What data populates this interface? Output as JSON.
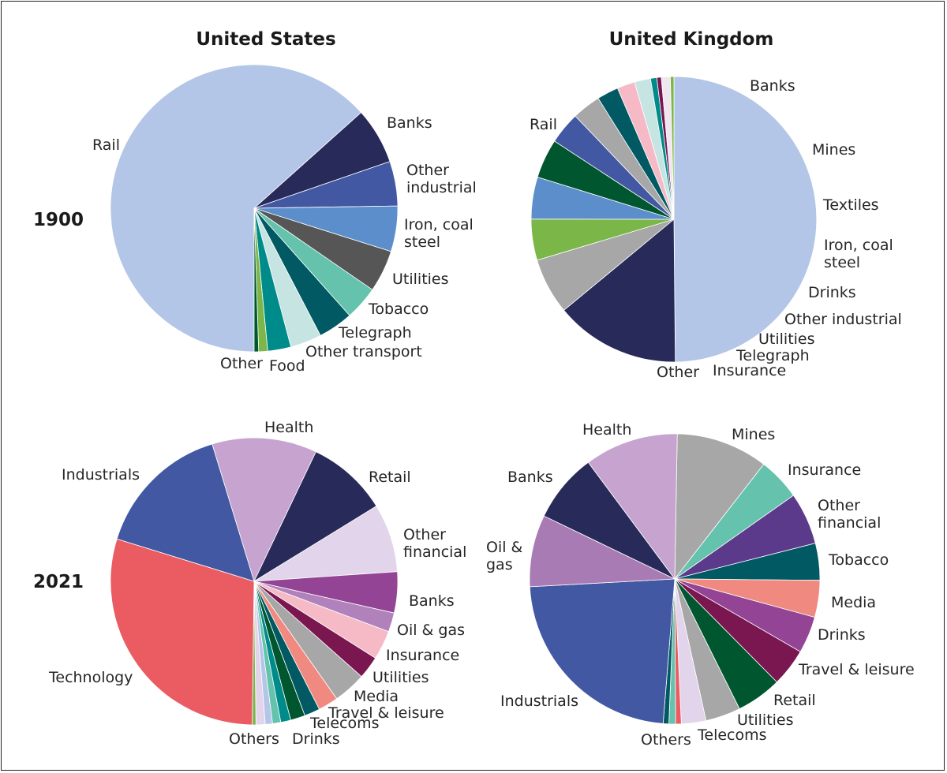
{
  "figure": {
    "column_titles": [
      "United States",
      "United Kingdom"
    ],
    "row_labels": [
      "1900",
      "2021"
    ]
  },
  "chart_data": [
    {
      "type": "pie",
      "country": "United States",
      "year": "1900",
      "slices": [
        {
          "label": "Rail",
          "value": 63.0,
          "color": "#b3c6e7"
        },
        {
          "label": "Banks",
          "value": 6.3,
          "color": "#282a59"
        },
        {
          "label": "Other industrial",
          "value": 5.0,
          "color": "#4358a3"
        },
        {
          "label": "Iron, coal steel",
          "value": 5.1,
          "color": "#5b8ecb"
        },
        {
          "label": "Utilities",
          "value": 4.7,
          "color": "#565656"
        },
        {
          "label": "Tobacco",
          "value": 3.8,
          "color": "#64c2ad"
        },
        {
          "label": "Telegraph",
          "value": 3.9,
          "color": "#005963"
        },
        {
          "label": "Other transport",
          "value": 3.5,
          "color": "#c6e5e2"
        },
        {
          "label": "Food",
          "value": 2.6,
          "color": "#008b8b"
        },
        {
          "label": "Other",
          "value": 1.0,
          "color": "#7ab648"
        },
        {
          "label": "",
          "value": 0.5,
          "color": "#00562e"
        }
      ]
    },
    {
      "type": "pie",
      "country": "United Kingdom",
      "year": "1900",
      "slices": [
        {
          "label": "Rail",
          "value": 49.3,
          "color": "#b3c6e7"
        },
        {
          "label": "Banks",
          "value": 14.0,
          "color": "#282a59"
        },
        {
          "label": "Mines",
          "value": 6.3,
          "color": "#a7a7a7"
        },
        {
          "label": "Textiles",
          "value": 4.6,
          "color": "#7ab648"
        },
        {
          "label": "Iron, coal steel",
          "value": 4.7,
          "color": "#5b8ecb"
        },
        {
          "label": "Drinks",
          "value": 4.4,
          "color": "#00562e"
        },
        {
          "label": "Other industrial",
          "value": 3.6,
          "color": "#4358a3"
        },
        {
          "label": "Utilities",
          "value": 3.2,
          "color": "#a7a7a7"
        },
        {
          "label": "Telegraph",
          "value": 2.4,
          "color": "#005963"
        },
        {
          "label": "Insurance",
          "value": 2.0,
          "color": "#f5bac6"
        },
        {
          "label": "",
          "value": 1.8,
          "color": "#c6e5e2"
        },
        {
          "label": "",
          "value": 0.7,
          "color": "#008b8b"
        },
        {
          "label": "",
          "value": 0.5,
          "color": "#7a1650"
        },
        {
          "label": "Other",
          "value": 1.0,
          "color": "#efe6ef"
        },
        {
          "label": "",
          "value": 0.4,
          "color": "#7ab648"
        }
      ]
    },
    {
      "type": "pie",
      "country": "United States",
      "year": "2021",
      "slices": [
        {
          "label": "Health",
          "value": 11.5,
          "color": "#c6a4cf"
        },
        {
          "label": "Retail",
          "value": 8.9,
          "color": "#282a59"
        },
        {
          "label": "Other financial",
          "value": 7.5,
          "color": "#e2d4ea"
        },
        {
          "label": "Banks",
          "value": 4.5,
          "color": "#934495"
        },
        {
          "label": "Oil & gas",
          "value": 2.1,
          "color": "#b181bb"
        },
        {
          "label": "Insurance",
          "value": 3.2,
          "color": "#f5bac6"
        },
        {
          "label": "Utilities",
          "value": 2.5,
          "color": "#7a1650"
        },
        {
          "label": "Media",
          "value": 3.6,
          "color": "#a7a7a7"
        },
        {
          "label": "Travel & leisure",
          "value": 2.2,
          "color": "#f08a80"
        },
        {
          "label": "Telecoms",
          "value": 1.7,
          "color": "#005963"
        },
        {
          "label": "Drinks",
          "value": 1.6,
          "color": "#00562e"
        },
        {
          "label": "",
          "value": 1.1,
          "color": "#008b8b"
        },
        {
          "label": "",
          "value": 0.9,
          "color": "#64c2ad"
        },
        {
          "label": "",
          "value": 0.8,
          "color": "#b3c6e7"
        },
        {
          "label": "Others",
          "value": 1.0,
          "color": "#e2d4ea"
        },
        {
          "label": "",
          "value": 0.4,
          "color": "#7ab648"
        },
        {
          "label": "Technology",
          "value": 28.8,
          "color": "#ea5c62"
        },
        {
          "label": "Industrials",
          "value": 15.1,
          "color": "#4358a3"
        }
      ]
    },
    {
      "type": "pie",
      "country": "United Kingdom",
      "year": "2021",
      "slices": [
        {
          "label": "Mines",
          "value": 9.7,
          "color": "#a7a7a7"
        },
        {
          "label": "Insurance",
          "value": 4.5,
          "color": "#64c2ad"
        },
        {
          "label": "Other financial",
          "value": 5.5,
          "color": "#5b3a8c"
        },
        {
          "label": "Tobacco",
          "value": 3.9,
          "color": "#005963"
        },
        {
          "label": "Media",
          "value": 3.9,
          "color": "#f08a80"
        },
        {
          "label": "Drinks",
          "value": 3.9,
          "color": "#934495"
        },
        {
          "label": "Travel & leisure",
          "value": 4.0,
          "color": "#7a1650"
        },
        {
          "label": "Retail",
          "value": 4.8,
          "color": "#00562e"
        },
        {
          "label": "Utilities",
          "value": 3.7,
          "color": "#a7a7a7"
        },
        {
          "label": "Telecoms",
          "value": 2.6,
          "color": "#e2d4ea"
        },
        {
          "label": "",
          "value": 0.6,
          "color": "#ea5c62"
        },
        {
          "label": "",
          "value": 0.7,
          "color": "#64c2ad"
        },
        {
          "label": "Others",
          "value": 0.6,
          "color": "#005963"
        },
        {
          "label": "Industrials",
          "value": 21.7,
          "color": "#4358a3"
        },
        {
          "label": "Oil & gas",
          "value": 7.6,
          "color": "#a97bb4"
        },
        {
          "label": "Banks",
          "value": 7.3,
          "color": "#282a59"
        },
        {
          "label": "Health",
          "value": 9.9,
          "color": "#c6a4cf"
        }
      ]
    }
  ]
}
